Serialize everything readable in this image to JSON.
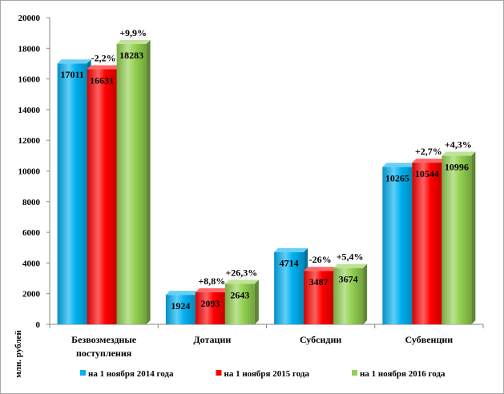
{
  "chart_data": {
    "type": "bar",
    "ylabel": "млн. рублей",
    "categories": [
      "Безвозмездные поступления",
      "Дотации",
      "Субсидии",
      "Субвенции"
    ],
    "series": [
      {
        "name": "на 1 ноября 2014 года",
        "color": "#00B0F0",
        "values": [
          17011,
          1924,
          4714,
          10265
        ],
        "change_labels": [
          null,
          null,
          null,
          null
        ]
      },
      {
        "name": "на 1 ноября 2015 года",
        "color": "#FF0000",
        "values": [
          16631,
          2093,
          3487,
          10544
        ],
        "change_labels": [
          "-2,2%",
          "+8,8%",
          "-26%",
          "+2,7%"
        ]
      },
      {
        "name": "на 1 ноября 2016 года",
        "color": "#92D050",
        "values": [
          18283,
          2643,
          3674,
          10996
        ],
        "change_labels": [
          "+9,9%",
          "+26,3%",
          "+5,4%",
          "+4,3%"
        ]
      }
    ],
    "ylim": [
      0,
      20000
    ],
    "yticks": [
      0,
      2000,
      4000,
      6000,
      8000,
      10000,
      12000,
      14000,
      16000,
      18000,
      20000
    ],
    "grid": false,
    "legend": "bottom"
  }
}
